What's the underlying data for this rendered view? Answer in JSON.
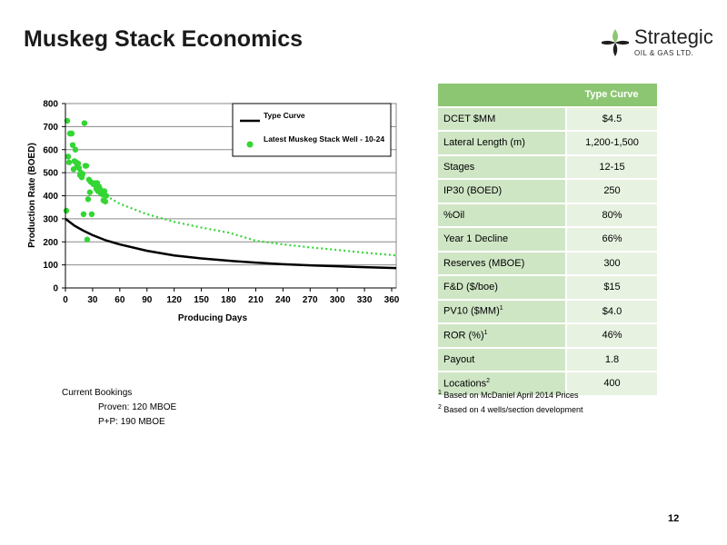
{
  "title": "Muskeg Stack Economics",
  "logo": {
    "word": "Strategic",
    "sub": "OIL & GAS LTD."
  },
  "chart_data": {
    "type": "scatter",
    "xlabel": "Producing Days",
    "ylabel": "Production Rate (BOED)",
    "xlim": [
      0,
      365
    ],
    "ylim": [
      0,
      800
    ],
    "xticks": [
      0,
      30,
      60,
      90,
      120,
      150,
      180,
      210,
      240,
      270,
      300,
      330,
      360
    ],
    "yticks": [
      0,
      100,
      200,
      300,
      400,
      500,
      600,
      700,
      800
    ],
    "grid": "horizontal",
    "legend_position": "top-right",
    "series": [
      {
        "name": "Type Curve",
        "style": "solid-line",
        "color": "#000000",
        "x": [
          0,
          10,
          20,
          30,
          45,
          60,
          90,
          120,
          150,
          180,
          210,
          240,
          270,
          300,
          330,
          365
        ],
        "y": [
          300,
          270,
          248,
          229,
          206,
          189,
          161,
          141,
          128,
          118,
          110,
          103,
          98,
          94,
          90,
          86
        ]
      },
      {
        "name": "",
        "style": "dotted-line",
        "color": "#33d633",
        "x": [
          45,
          60,
          90,
          120,
          150,
          180,
          210,
          240,
          270,
          300,
          330,
          365
        ],
        "y": [
          400,
          365,
          320,
          287,
          262,
          240,
          205,
          189,
          176,
          165,
          153,
          141
        ]
      },
      {
        "name": "Latest Muskeg Stack Well - 10-24",
        "style": "markers",
        "color": "#33d633",
        "x": [
          1,
          2,
          3,
          4,
          5,
          6,
          7,
          8,
          9,
          10,
          11,
          12,
          13,
          14,
          15,
          16,
          17,
          18,
          19,
          20,
          21,
          22,
          23,
          24,
          25,
          26,
          27,
          28,
          29,
          30,
          31,
          32,
          33,
          34,
          35,
          36,
          37,
          38,
          39,
          40,
          41,
          42,
          43,
          44,
          45
        ],
        "y": [
          335,
          725,
          570,
          545,
          670,
          670,
          670,
          620,
          515,
          550,
          600,
          545,
          530,
          540,
          520,
          490,
          500,
          480,
          495,
          320,
          715,
          530,
          530,
          210,
          385,
          470,
          415,
          460,
          320,
          455,
          450,
          450,
          455,
          430,
          455,
          420,
          440,
          430,
          410,
          420,
          405,
          380,
          420,
          375,
          400
        ]
      }
    ]
  },
  "bookings": {
    "heading": "Current Bookings",
    "proven": "Proven: 120 MBOE",
    "pp": "P+P: 190 MBOE"
  },
  "table": {
    "header": "Type Curve",
    "rows": [
      {
        "label": "DCET $MM",
        "value": "$4.5"
      },
      {
        "label": "Lateral Length (m)",
        "value": "1,200-1,500"
      },
      {
        "label": "Stages",
        "value": "12-15"
      },
      {
        "label": "IP30 (BOED)",
        "value": "250"
      },
      {
        "label": "%Oil",
        "value": "80%"
      },
      {
        "label": "Year 1 Decline",
        "value": "66%"
      },
      {
        "label": "Reserves (MBOE)",
        "value": "300"
      },
      {
        "label": "F&D ($/boe)",
        "value": "$15"
      },
      {
        "label": "PV10 ($MM)",
        "sup": "1",
        "value": "$4.0"
      },
      {
        "label": "ROR (%)",
        "sup": "1",
        "value": "46%"
      },
      {
        "label": "Payout",
        "value": "1.8"
      },
      {
        "label": "Locations",
        "sup": "2",
        "value": "400"
      }
    ]
  },
  "footnotes": [
    {
      "num": "1",
      "text": "Based on McDaniel April 2014 Prices"
    },
    {
      "num": "2",
      "text": "Based on 4 wells/section development"
    }
  ],
  "page_number": "12",
  "colors": {
    "accent_green": "#8cc672",
    "label_cell": "#cfe6c5",
    "value_cell": "#e7f2e1",
    "marker_green": "#33d633"
  }
}
